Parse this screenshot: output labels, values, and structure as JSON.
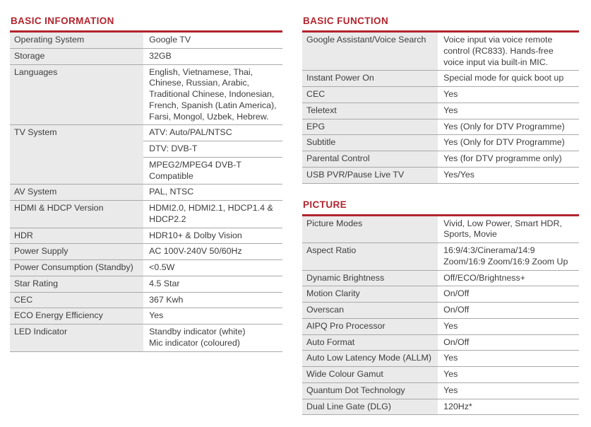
{
  "theme": {
    "accent": "#b2242e",
    "label_bg": "#eaeaea",
    "divider": "#a9a9a9",
    "text": "#3d3d3d",
    "background": "#ffffff"
  },
  "sections": [
    {
      "title": "BASIC INFORMATION",
      "rows": [
        {
          "label": "Operating System",
          "cells": [
            "Google TV"
          ]
        },
        {
          "label": "Storage",
          "cells": [
            "32GB"
          ]
        },
        {
          "label": "Languages",
          "cells": [
            "English, Vietnamese, Thai, Chinese, Russian, Arabic, Traditional Chinese, Indonesian, French, Spanish (Latin America), Farsi, Mongol, Uzbek, Hebrew."
          ]
        },
        {
          "label": "TV System",
          "cells": [
            "ATV: Auto/PAL/NTSC",
            "DTV: DVB-T",
            "MPEG2/MPEG4 DVB-T Compatible"
          ]
        },
        {
          "label": "AV System",
          "cells": [
            "PAL, NTSC"
          ]
        },
        {
          "label": "HDMI & HDCP Version",
          "cells": [
            "HDMI2.0, HDMI2.1, HDCP1.4 & HDCP2.2"
          ]
        },
        {
          "label": "HDR",
          "cells": [
            "HDR10+ & Dolby Vision"
          ]
        },
        {
          "label": "Power Supply",
          "cells": [
            "AC 100V-240V 50/60Hz"
          ]
        },
        {
          "label": "Power Consumption (Standby)",
          "cells": [
            "<0.5W"
          ]
        },
        {
          "label": "Star Rating",
          "cells": [
            "4.5 Star"
          ]
        },
        {
          "label": "CEC",
          "cells": [
            "367 Kwh"
          ]
        },
        {
          "label": "ECO Energy Efficiency",
          "cells": [
            "Yes"
          ]
        },
        {
          "label": "LED Indicator",
          "cells": [
            "Standby indicator (white)\nMic indicator (coloured)"
          ]
        }
      ]
    },
    {
      "title": "BASIC FUNCTION",
      "rows": [
        {
          "label": "Google Assistant/Voice Search",
          "cells": [
            "Voice input via voice remote control (RC833). Hands-free voice input via built-in MIC."
          ]
        },
        {
          "label": "Instant Power On",
          "cells": [
            "Special mode for quick boot up"
          ]
        },
        {
          "label": "CEC",
          "cells": [
            "Yes"
          ]
        },
        {
          "label": "Teletext",
          "cells": [
            "Yes"
          ]
        },
        {
          "label": "EPG",
          "cells": [
            "Yes (Only for DTV Programme)"
          ]
        },
        {
          "label": "Subtitle",
          "cells": [
            "Yes (Only for DTV Programme)"
          ]
        },
        {
          "label": "Parental Control",
          "cells": [
            "Yes (for DTV programme only)"
          ]
        },
        {
          "label": "USB PVR/Pause Live TV",
          "cells": [
            "Yes/Yes"
          ]
        }
      ]
    },
    {
      "title": "PICTURE",
      "rows": [
        {
          "label": "Picture Modes",
          "cells": [
            "Vivid, Low Power, Smart HDR, Sports, Movie"
          ]
        },
        {
          "label": "Aspect Ratio",
          "cells": [
            "16:9/4:3/Cinerama/14:9\nZoom/16:9 Zoom/16:9 Zoom Up"
          ]
        },
        {
          "label": "Dynamic Brightness",
          "cells": [
            "Off/ECO/Brightness+"
          ]
        },
        {
          "label": "Motion Clarity",
          "cells": [
            "On/Off"
          ]
        },
        {
          "label": "Overscan",
          "cells": [
            "On/Off"
          ]
        },
        {
          "label": "AIPQ Pro Processor",
          "cells": [
            "Yes"
          ]
        },
        {
          "label": "Auto Format",
          "cells": [
            "On/Off"
          ]
        },
        {
          "label": "Auto Low Latency Mode (ALLM)",
          "cells": [
            "Yes"
          ]
        },
        {
          "label": "Wide Colour Gamut",
          "cells": [
            "Yes"
          ]
        },
        {
          "label": "Quantum Dot Technology",
          "cells": [
            "Yes"
          ]
        },
        {
          "label": "Dual Line Gate (DLG)",
          "cells": [
            "120Hz*"
          ]
        }
      ]
    }
  ]
}
